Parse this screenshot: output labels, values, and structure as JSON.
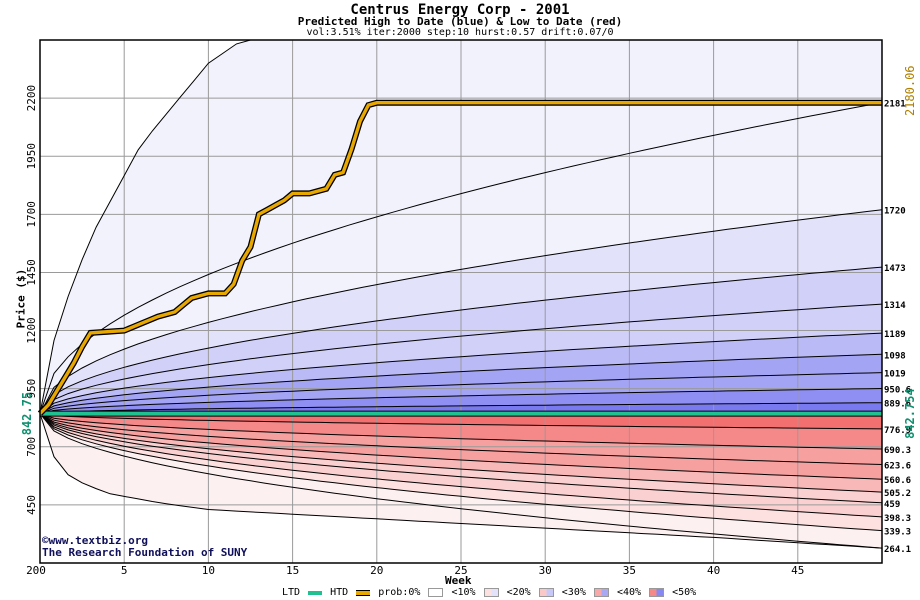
{
  "header": {
    "title": "Centrus Energy Corp - 2001",
    "subtitle": "Predicted High to Date (blue) &  Low to Date (red)",
    "params": "vol:3.51% iter:2000 step:10 hurst:0.57 drift:0.07/0"
  },
  "credits": {
    "line1": "©www.textbiz.org",
    "line2": "The Research Foundation of SUNY"
  },
  "legend": {
    "ltd": "LTD",
    "htd": "HTD",
    "prob": "prob:0%",
    "p10": "<10%",
    "p20": "<20%",
    "p30": "<30%",
    "p40": "<40%",
    "p50": "<50%"
  },
  "colors": {
    "htd_line": "#e8a800",
    "ltd_line": "#20c090",
    "blue_bands": [
      "#f2f2fd",
      "#e2e2fb",
      "#d0d0f9",
      "#babaf7",
      "#a4a4f5",
      "#8e8ef3",
      "#7a7af0"
    ],
    "red_bands": [
      "#fdf0f0",
      "#fde0e0",
      "#fbd0d0",
      "#f9b8b8",
      "#f7a0a0",
      "#f58888",
      "#f37070"
    ],
    "secondary_labels_htd": "#b08000",
    "secondary_labels_ltd": "#109070"
  },
  "chart_data": {
    "type": "area",
    "title": "Centrus Energy Corp - 2001",
    "subtitle": "Predicted High to Date (blue) &  Low to Date (red)",
    "xlabel": "Week",
    "ylabel": "Price ($)",
    "xlim": [
      0,
      50
    ],
    "ylim": [
      200,
      2450
    ],
    "x_ticks": [
      5,
      10,
      15,
      20,
      25,
      30,
      35,
      40,
      45
    ],
    "x_tick_labels": [
      "5",
      "10",
      "15",
      "20",
      "25",
      "30",
      "35",
      "40",
      "45"
    ],
    "y_ticks": [
      200,
      450,
      700,
      950,
      1200,
      1450,
      1700,
      1950,
      2200
    ],
    "y_tick_labels": [
      "200",
      "450",
      "700",
      "950",
      "1200",
      "1450",
      "1700",
      "1950",
      "2200"
    ],
    "grid": true,
    "start_price": 842.75,
    "start_price_label": "842.75",
    "htd_final_label": "2180.06",
    "ltd_final_label": "842.754",
    "high_contours_final": [
      2181,
      1720,
      1473,
      1314,
      1189,
      1098,
      1019,
      950.6,
      889.6
    ],
    "high_contour_labels": [
      "2181",
      "1720",
      "1473",
      "1314",
      "1189",
      "1098",
      "1019",
      "950.6",
      "889.6"
    ],
    "low_contours_final": [
      776.9,
      690.3,
      623.6,
      560.6,
      505.2,
      459,
      398.3,
      339.3,
      264.1
    ],
    "low_contour_labels": [
      "776.9",
      "690.3",
      "623.6",
      "560.6",
      "505.2",
      "459",
      "398.3",
      "339.3",
      "264.1"
    ],
    "htd_series": {
      "name": "HTD",
      "x": [
        0,
        0.5,
        1,
        1.5,
        2,
        2.5,
        3,
        4,
        5,
        5.5,
        6,
        6.5,
        7,
        8,
        8.5,
        9,
        10,
        11,
        11.5,
        12,
        12.5,
        13,
        13.5,
        14,
        14.5,
        15,
        16,
        17,
        17.5,
        18,
        18.5,
        19,
        19.5,
        20,
        30,
        40,
        50
      ],
      "y": [
        842.75,
        880,
        940,
        1000,
        1060,
        1130,
        1190,
        1195,
        1200,
        1215,
        1230,
        1245,
        1260,
        1280,
        1310,
        1340,
        1360,
        1360,
        1400,
        1500,
        1560,
        1700,
        1720,
        1740,
        1760,
        1790,
        1790,
        1810,
        1870,
        1880,
        1980,
        2100,
        2170,
        2180.06,
        2180.06,
        2180.06,
        2180.06
      ]
    },
    "ltd_series": {
      "name": "LTD",
      "x": [
        0,
        50
      ],
      "y": [
        842.75,
        842.75
      ]
    },
    "outer_bounds": {
      "upper": {
        "x": [
          0,
          1,
          3,
          6,
          10,
          12,
          50
        ],
        "y": [
          842.75,
          1220,
          1600,
          2000,
          2350,
          2450,
          2450
        ]
      },
      "lower": {
        "x": [
          0,
          1,
          2,
          4,
          7,
          10,
          20,
          30,
          40,
          50
        ],
        "y": [
          842.75,
          620,
          560,
          500,
          460,
          430,
          390,
          350,
          310,
          264.1
        ]
      }
    }
  }
}
